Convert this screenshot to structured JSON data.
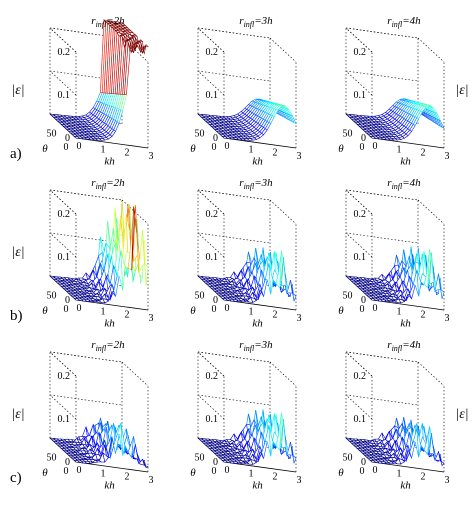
{
  "chart_data": {
    "type": "surface3d",
    "grid_lines": "dotted",
    "colormap": "jet",
    "zlabel": "|ε|",
    "axes": {
      "x": {
        "label": "kh",
        "range": [
          0,
          3
        ],
        "ticks": [
          "0",
          "1",
          "2",
          "3"
        ]
      },
      "y": {
        "label": "θ",
        "range": [
          0,
          90
        ],
        "ticks": [
          "0",
          "50"
        ]
      },
      "z": {
        "label": "|ε|",
        "range": [
          0,
          0.2
        ],
        "ticks": [
          "0",
          "0.1",
          "0.2"
        ]
      }
    },
    "rows": [
      {
        "label": "a)",
        "panels": [
          {
            "title": "r_infl=2h",
            "title_main": "r",
            "title_sub": "infl",
            "title_rest": "=2h",
            "peak": 0.2,
            "peak_kh": 2.6,
            "spiky": false,
            "diverges": true
          },
          {
            "title": "r_infl=3h",
            "title_main": "r",
            "title_sub": "infl",
            "title_rest": "=3h",
            "peak": 0.09,
            "peak_kh": 2.5,
            "spiky": false,
            "diverges": false
          },
          {
            "title": "r_infl=4h",
            "title_main": "r",
            "title_sub": "infl",
            "title_rest": "=4h",
            "peak": 0.09,
            "peak_kh": 2.4,
            "spiky": false,
            "diverges": false
          }
        ]
      },
      {
        "label": "b)",
        "panels": [
          {
            "title": "r_infl=2h",
            "title_main": "r",
            "title_sub": "infl",
            "title_rest": "=2h",
            "peak": 0.2,
            "peak_kh": 2.5,
            "spiky": true,
            "diverges": false
          },
          {
            "title": "r_infl=3h",
            "title_main": "r",
            "title_sub": "infl",
            "title_rest": "=3h",
            "peak": 0.1,
            "peak_kh": 2.3,
            "spiky": true,
            "diverges": false
          },
          {
            "title": "r_infl=4h",
            "title_main": "r",
            "title_sub": "infl",
            "title_rest": "=4h",
            "peak": 0.1,
            "peak_kh": 2.4,
            "spiky": true,
            "diverges": false
          }
        ]
      },
      {
        "label": "c)",
        "panels": [
          {
            "title": "r_infl=2h",
            "title_main": "r",
            "title_sub": "infl",
            "title_rest": "=2h",
            "peak": 0.08,
            "peak_kh": 2.0,
            "spiky": true,
            "diverges": false
          },
          {
            "title": "r_infl=3h",
            "title_main": "r",
            "title_sub": "infl",
            "title_rest": "=3h",
            "peak": 0.1,
            "peak_kh": 2.3,
            "spiky": true,
            "diverges": false
          },
          {
            "title": "r_infl=4h",
            "title_main": "r",
            "title_sub": "infl",
            "title_rest": "=4h",
            "peak": 0.08,
            "peak_kh": 2.2,
            "spiky": true,
            "diverges": false
          }
        ]
      }
    ]
  }
}
